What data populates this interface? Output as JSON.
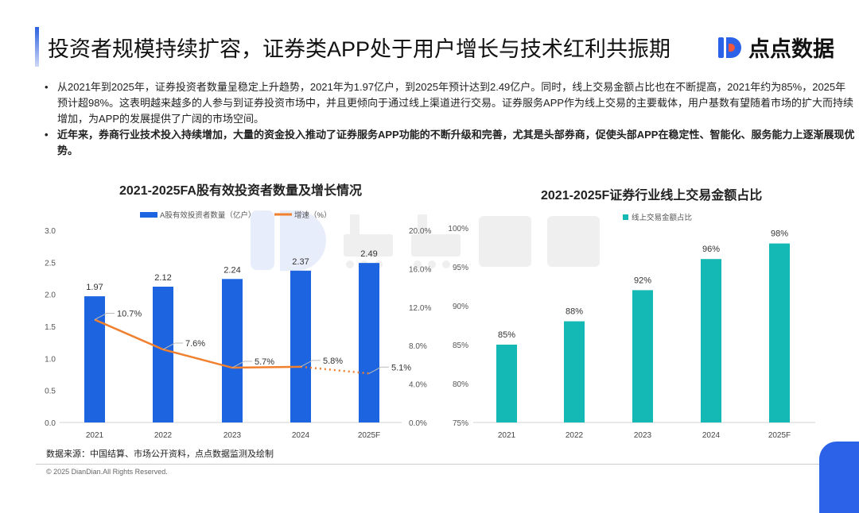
{
  "header": {
    "title": "投资者规模持续扩容，证券类APP处于用户增长与技术红利共振期",
    "logo_text": "点点数据"
  },
  "bullets": [
    {
      "text": "从2021年到2025年，证券投资者数量呈稳定上升趋势，2021年为1.97亿户，到2025年预计达到2.49亿户。同时，线上交易金额占比也在不断提高，2021年约为85%，2025年预计超98%。这表明越来越多的人参与到证券投资市场中，并且更倾向于通过线上渠道进行交易。证券服务APP作为线上交易的主要载体，用户基数有望随着市场的扩大而持续增加，为APP的发展提供了广阔的市场空间。",
      "bold": false
    },
    {
      "text": "近年来，券商行业技术投入持续增加，大量的资金投入推动了证券服务APP功能的不断升级和完善，尤其是头部券商，促使头部APP在稳定性、智能化、服务能力上逐渐展现优势。",
      "bold": true
    }
  ],
  "watermark": "点点数据",
  "chart_data": [
    {
      "type": "bar+line",
      "title": "2021-2025FA股有效投资者数量及增长情况",
      "categories": [
        "2021",
        "2022",
        "2023",
        "2024",
        "2025F"
      ],
      "series": [
        {
          "name": "A股有效投资者数量（亿户）",
          "type": "bar",
          "axis": "left",
          "values": [
            1.97,
            2.12,
            2.24,
            2.37,
            2.49
          ],
          "labels": [
            "1.97",
            "2.12",
            "2.24",
            "2.37",
            "2.49"
          ],
          "color": "#1c64e0"
        },
        {
          "name": "增速（%）",
          "type": "line",
          "axis": "right",
          "values": [
            10.7,
            7.6,
            5.7,
            5.8,
            5.1
          ],
          "labels": [
            "10.7%",
            "7.6%",
            "5.7%",
            "5.8%",
            "5.1%"
          ],
          "color": "#f07f2e",
          "dotted_from": "2024"
        }
      ],
      "yleft": {
        "lim": [
          0,
          3.0
        ],
        "ticks": [
          "0.0",
          "0.5",
          "1.0",
          "1.5",
          "2.0",
          "2.5",
          "3.0"
        ]
      },
      "yright": {
        "lim": [
          0,
          20
        ],
        "ticks": [
          "0.0%",
          "4.0%",
          "8.0%",
          "12.0%",
          "16.0%",
          "20.0%"
        ]
      },
      "legend": "top",
      "grid": false
    },
    {
      "type": "bar",
      "title": "2021-2025F证券行业线上交易金额占比",
      "categories": [
        "2021",
        "2022",
        "2023",
        "2024",
        "2025F"
      ],
      "series": [
        {
          "name": "线上交易金额占比",
          "values": [
            85,
            88,
            92,
            96,
            98
          ],
          "labels": [
            "85%",
            "88%",
            "92%",
            "96%",
            "98%"
          ],
          "color": "#14b8b4"
        }
      ],
      "ylim": [
        75,
        100
      ],
      "yticks": [
        "75%",
        "80%",
        "85%",
        "90%",
        "95%",
        "100%"
      ],
      "legend": "top-left",
      "grid": false
    }
  ],
  "footer": {
    "source": "数据来源：中国结算、市场公开资料，点点数据监测及绘制",
    "copyright": "© 2025 DianDian.All Rights Reserved."
  }
}
